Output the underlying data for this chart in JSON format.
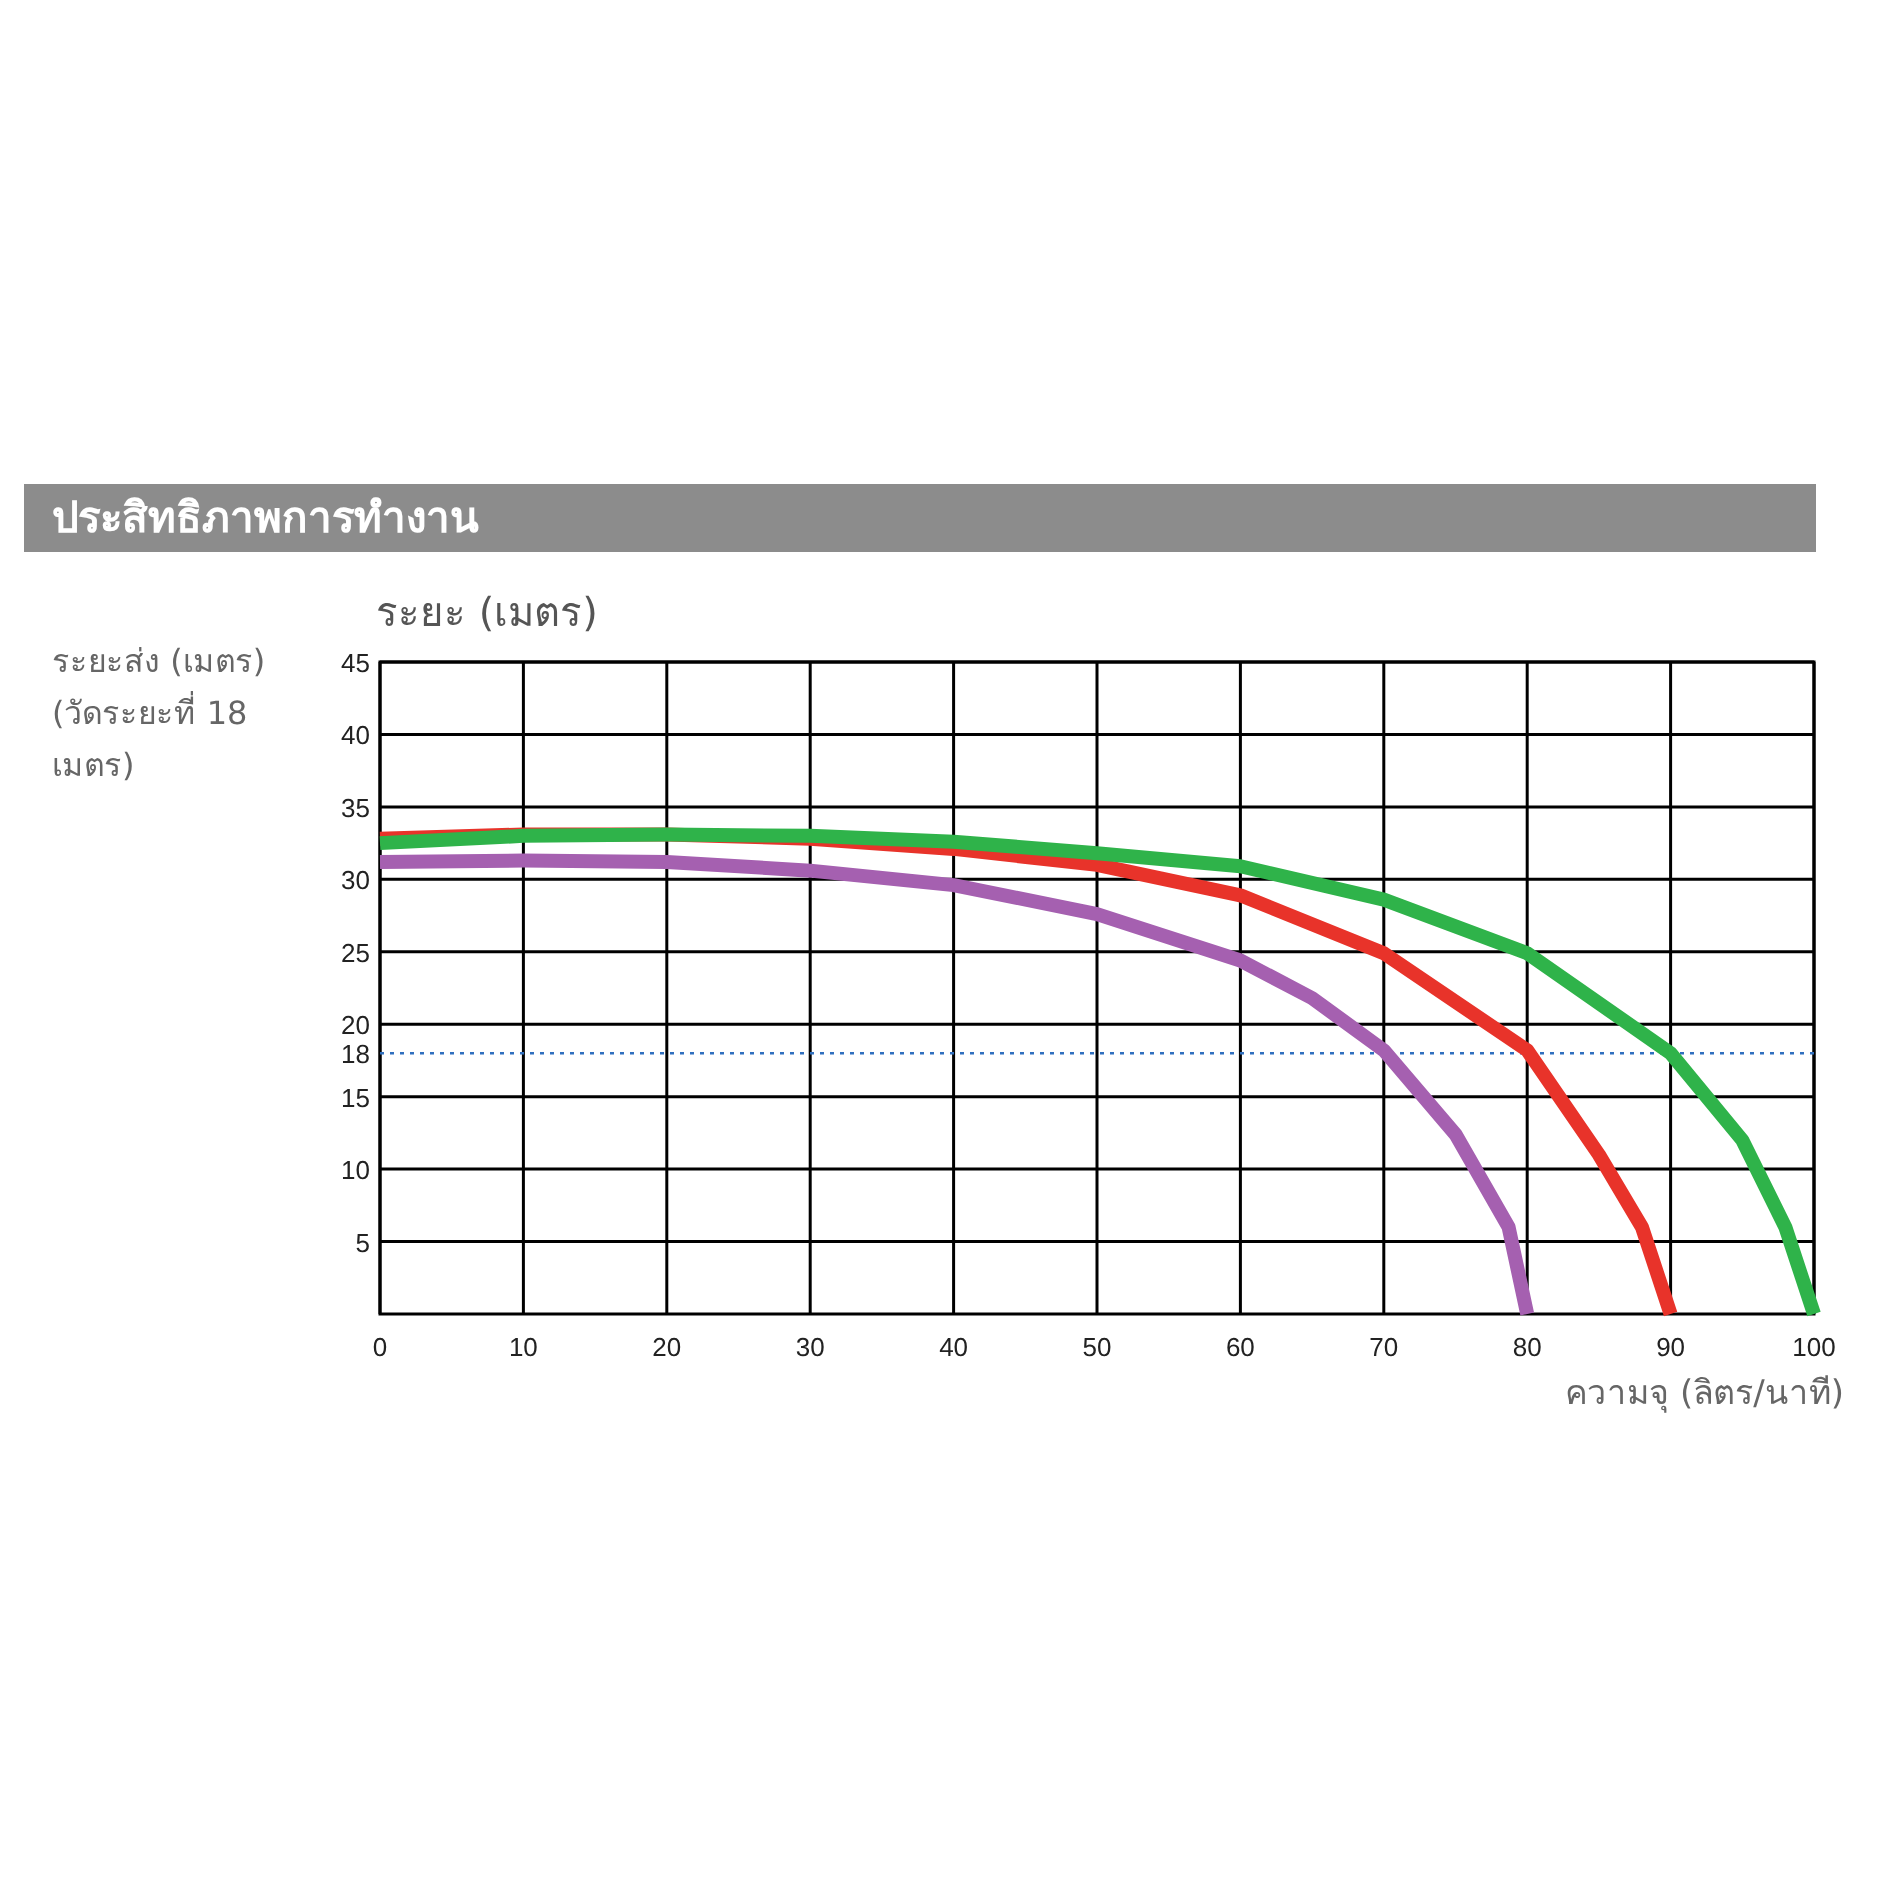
{
  "chart_data": {
    "type": "line",
    "title": "ประสิทธิภาพการทำงาน",
    "ylabel": "ระยะ (เมตร)",
    "xlabel": "ความจุ (ลิตร/นาที)",
    "annotations": [
      "ระยะส่ง (เมตร) (วัดระยะที่ 18 เมตร)"
    ],
    "xlim": [
      0,
      100
    ],
    "ylim": [
      0,
      45
    ],
    "xticks": [
      0,
      10,
      20,
      30,
      40,
      50,
      60,
      70,
      80,
      90,
      100
    ],
    "yticks": [
      5,
      10,
      15,
      20,
      25,
      30,
      35,
      40,
      45
    ],
    "grid": true,
    "line_style": "solid",
    "marker": "none",
    "ref_lines": [
      {
        "axis": "y",
        "value": 18,
        "label": "18",
        "color": "#2f6fbf",
        "line_style": "dotted"
      }
    ],
    "series": [
      {
        "color": "#a560b0",
        "x": [
          0,
          10,
          20,
          30,
          40,
          50,
          60,
          65,
          70,
          75,
          78.7,
          80
        ],
        "values": [
          31.2,
          31.3,
          31.2,
          30.6,
          29.6,
          27.6,
          24.4,
          21.8,
          18.2,
          12.4,
          6,
          0
        ]
      },
      {
        "color": "#e8332a",
        "x": [
          0,
          10,
          20,
          30,
          40,
          50,
          60,
          70,
          80,
          85,
          88,
          90
        ],
        "values": [
          32.8,
          33.1,
          33.1,
          32.8,
          32.1,
          31,
          28.9,
          24.9,
          18.2,
          11,
          6,
          0
        ]
      },
      {
        "color": "#2fb34a",
        "x": [
          0,
          10,
          20,
          30,
          40,
          50,
          60,
          70,
          80,
          90,
          95,
          98,
          100
        ],
        "values": [
          32.5,
          33,
          33.1,
          33,
          32.6,
          31.8,
          30.9,
          28.6,
          24.9,
          18,
          12,
          6,
          0
        ]
      }
    ]
  }
}
